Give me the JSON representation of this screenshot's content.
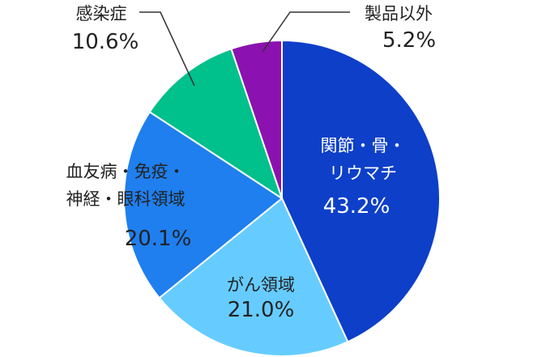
{
  "chart_data": {
    "type": "pie",
    "categories": [
      "関節・骨・\nリウマチ",
      "がん領域",
      "血友病・免疫・\n神経・眼科領域",
      "感染症",
      "製品以外"
    ],
    "values": [
      43.2,
      21.0,
      20.1,
      10.6,
      5.2
    ],
    "value_labels": [
      "43.2%",
      "21.0%",
      "20.1%",
      "10.6%",
      "5.2%"
    ],
    "colors": [
      "#0d3fc9",
      "#66ccff",
      "#1f7fef",
      "#00c08b",
      "#8b12b0"
    ]
  }
}
